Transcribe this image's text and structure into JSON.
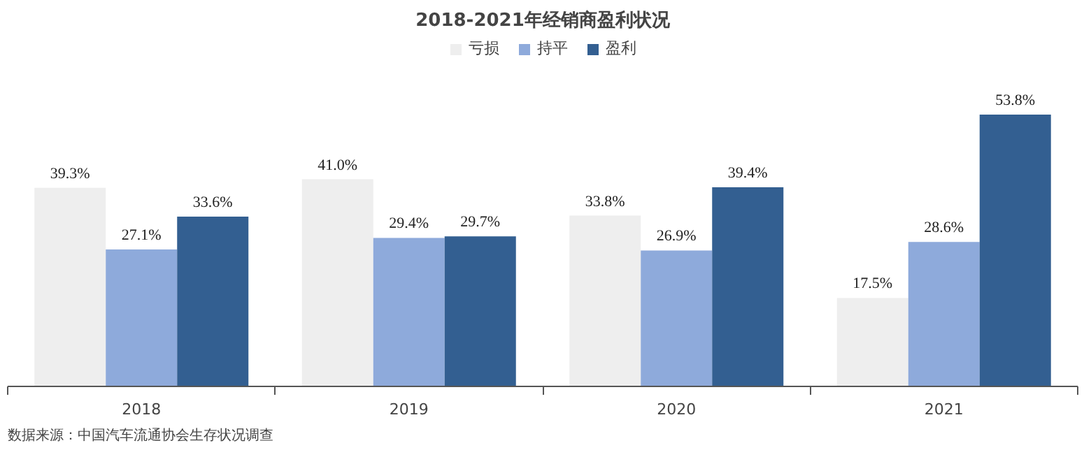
{
  "chart_data": {
    "type": "bar",
    "title": "2018-2021年经销商盈利状况",
    "categories": [
      "2018",
      "2019",
      "2020",
      "2021"
    ],
    "series": [
      {
        "name": "亏损",
        "color": "#eeeeee",
        "values": [
          39.3,
          41.0,
          33.8,
          17.5
        ],
        "value_labels": [
          "39.3%",
          "41.0%",
          "33.8%",
          "17.5%"
        ]
      },
      {
        "name": "持平",
        "color": "#8eaadb",
        "values": [
          27.1,
          29.4,
          26.9,
          28.6
        ],
        "value_labels": [
          "27.1%",
          "29.4%",
          "26.9%",
          "28.6%"
        ]
      },
      {
        "name": "盈利",
        "color": "#335f91",
        "values": [
          33.6,
          29.7,
          39.4,
          53.8
        ],
        "value_labels": [
          "33.6%",
          "29.7%",
          "39.4%",
          "53.8%"
        ]
      }
    ],
    "legend": "top",
    "annotations": [
      "数据来源：中国汽车流通协会生存状况调查"
    ]
  }
}
